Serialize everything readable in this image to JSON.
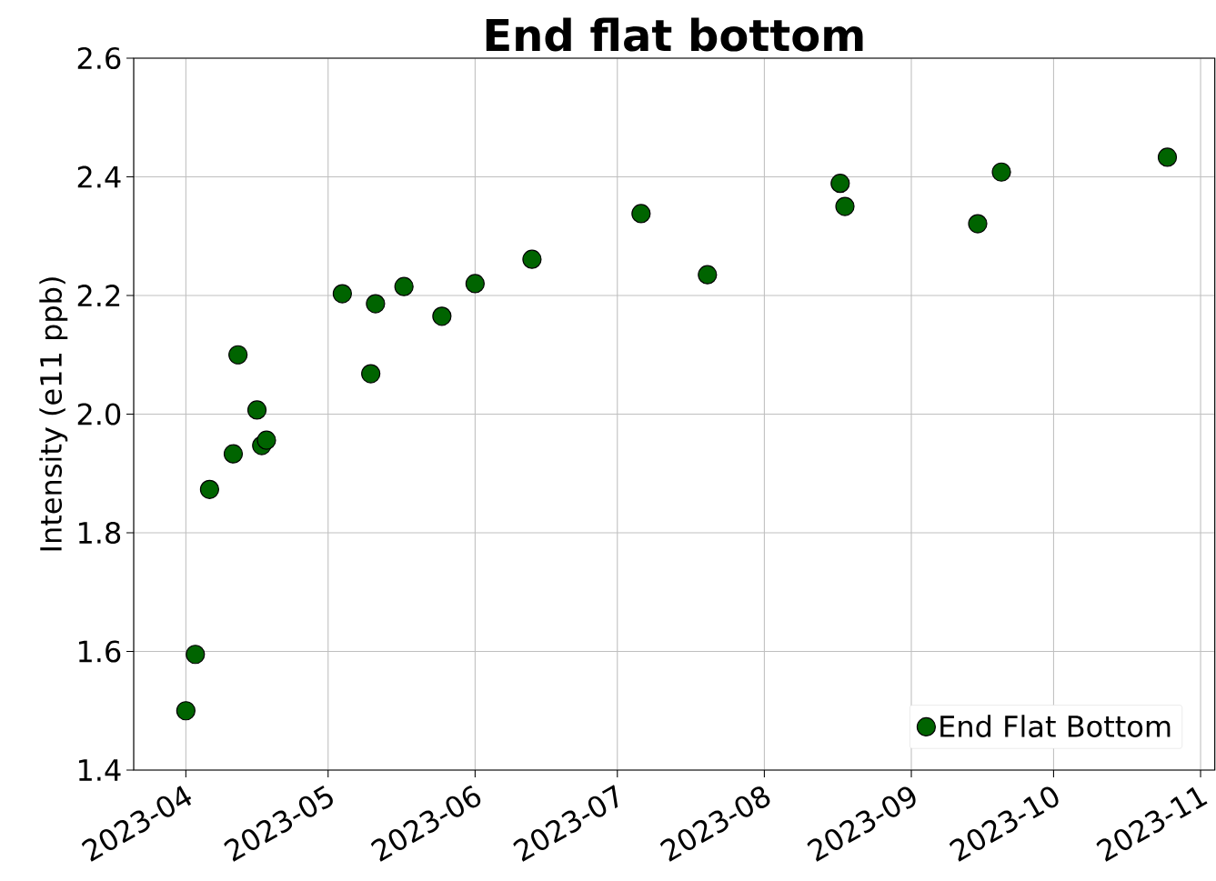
{
  "chart_data": {
    "type": "scatter",
    "title": "End flat bottom",
    "ylabel": "Intensity (e11 ppb)",
    "x": [
      "2023-04-01",
      "2023-04-03",
      "2023-04-06",
      "2023-04-11",
      "2023-04-12",
      "2023-04-16",
      "2023-04-17",
      "2023-04-18",
      "2023-05-04",
      "2023-05-10",
      "2023-05-11",
      "2023-05-17",
      "2023-05-25",
      "2023-06-01",
      "2023-06-13",
      "2023-07-06",
      "2023-07-20",
      "2023-08-17",
      "2023-08-18",
      "2023-09-15",
      "2023-09-20",
      "2023-10-25"
    ],
    "series": [
      {
        "name": "End Flat Bottom",
        "color": "#006400",
        "values": [
          1.5,
          1.595,
          1.873,
          1.933,
          2.1,
          2.007,
          1.947,
          1.956,
          2.203,
          2.068,
          2.186,
          2.215,
          2.165,
          2.22,
          2.261,
          2.338,
          2.235,
          2.389,
          2.35,
          2.321,
          2.408,
          2.433
        ]
      }
    ],
    "xlim": [
      "2023-03-21",
      "2023-11-04"
    ],
    "xticks": [
      "2023-04",
      "2023-05",
      "2023-06",
      "2023-07",
      "2023-08",
      "2023-09",
      "2023-10",
      "2023-11"
    ],
    "ylim": [
      1.4,
      2.6
    ],
    "yticks": [
      1.4,
      1.6,
      1.8,
      {
        "value": 2.0,
        "label": "2.0"
      },
      2.2,
      2.4,
      2.6
    ],
    "grid": true,
    "legend": "bottom right"
  }
}
